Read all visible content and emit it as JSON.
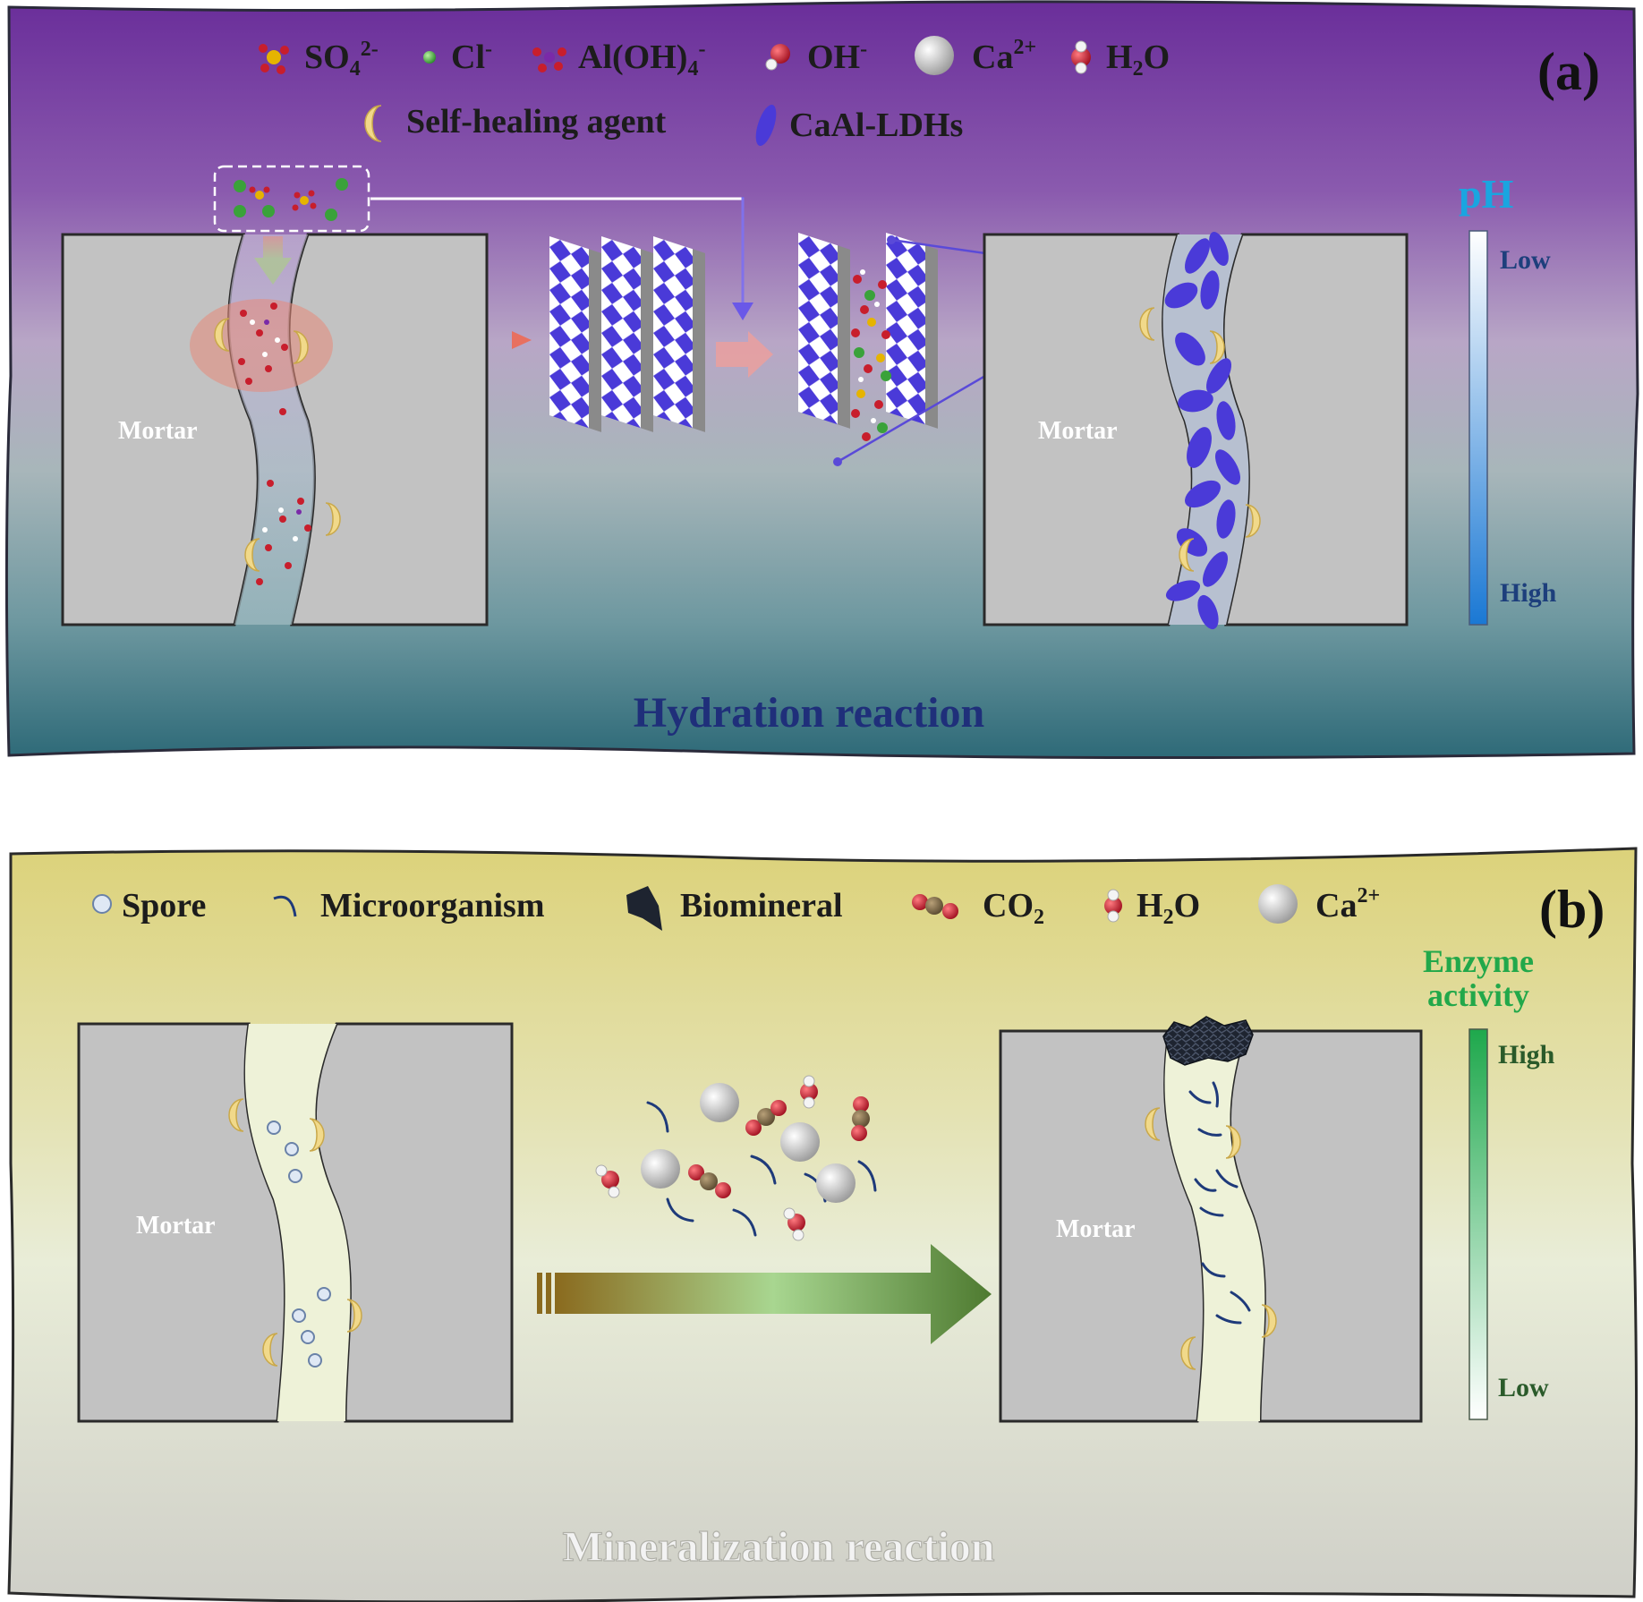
{
  "panel_a": {
    "tag": "(a)",
    "title": "Hydration reaction",
    "legend": {
      "sulfate": {
        "text": "SO",
        "sub": "4",
        "sup": "2-"
      },
      "chloride": {
        "text": "Cl",
        "sup": "-"
      },
      "aluminate": {
        "text": "Al(OH)",
        "sub": "4",
        "sup": "-"
      },
      "hydroxide": {
        "text": "OH",
        "sup": "-"
      },
      "calcium": {
        "text": "Ca",
        "sup": "2+"
      },
      "water": {
        "text": "H",
        "sub": "2",
        "tail": "O"
      },
      "healing_agent": "Self-healing agent",
      "ldh": "CaAl-LDHs"
    },
    "mortar_left": "Mortar",
    "mortar_right": "Mortar",
    "scale": {
      "title": "pH",
      "top": "Low",
      "bottom": "High"
    }
  },
  "panel_b": {
    "tag": "(b)",
    "title": "Mineralization reaction",
    "legend": {
      "spore": "Spore",
      "microorganism": "Microorganism",
      "biomineral": "Biomineral",
      "co2": {
        "text": "CO",
        "sub": "2"
      },
      "water": {
        "text": "H",
        "sub": "2",
        "tail": "O"
      },
      "calcium": {
        "text": "Ca",
        "sup": "2+"
      }
    },
    "mortar_left": "Mortar",
    "mortar_right": "Mortar",
    "scale": {
      "title_line1": "Enzyme",
      "title_line2": "activity",
      "top": "High",
      "bottom": "Low"
    }
  },
  "colors": {
    "panel_a_top": "#6a2e9a",
    "panel_a_bottom": "#2e6a78",
    "panel_b_top": "#dcd27a",
    "panel_b_bottom": "#cfcfc8",
    "mortar": "#c2c2c2",
    "ldh_purple": "#4a3ad8",
    "healing_agent": "#f1d98a",
    "sulfate": "#e6b400",
    "chloride": "#3aa23a",
    "oxygen": "#c81e2c",
    "calcium": "#eeeeee"
  }
}
